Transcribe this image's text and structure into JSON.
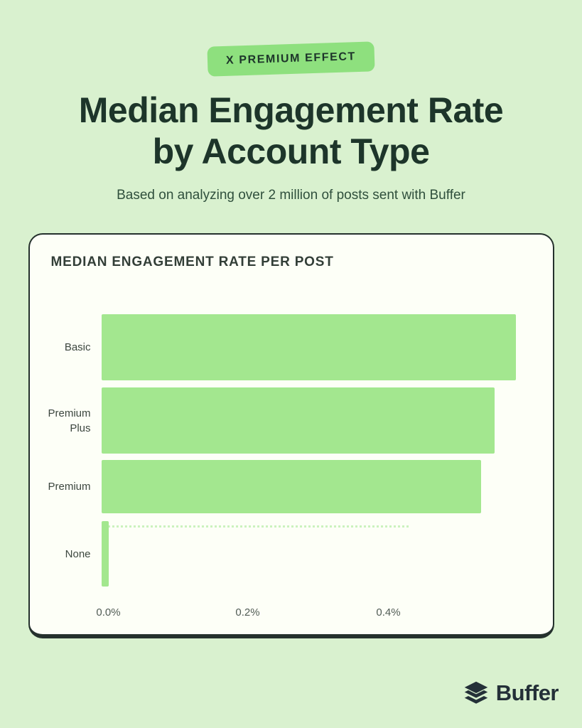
{
  "page": {
    "badge": "X PREMIUM EFFECT",
    "title_line1": "Median Engagement Rate",
    "title_line2": "by Account Type",
    "subtitle": "Based on analyzing over 2 million of posts sent with Buffer",
    "footer_brand": "Buffer"
  },
  "colors": {
    "background": "#d9f1cf",
    "badge_bg": "#8ee07e",
    "bar_fill": "#a3e78f",
    "dark_text": "#1d352a",
    "card_bg": "#fdfff7",
    "card_border": "#25312d",
    "logo": "#243038"
  },
  "chart_data": {
    "type": "bar",
    "orientation": "horizontal",
    "title": "MEDIAN ENGAGEMENT RATE PER POST",
    "categories": [
      "Basic",
      "Premium Plus",
      "Premium",
      "None"
    ],
    "values": [
      0.59,
      0.56,
      0.54,
      0.01
    ],
    "unit": "%",
    "x_ticks": [
      "0.0%",
      "0.2%",
      "0.4%"
    ],
    "x_tick_values": [
      0.0,
      0.2,
      0.4
    ],
    "xlim": [
      0,
      0.64
    ],
    "grid": false,
    "legend": false
  }
}
